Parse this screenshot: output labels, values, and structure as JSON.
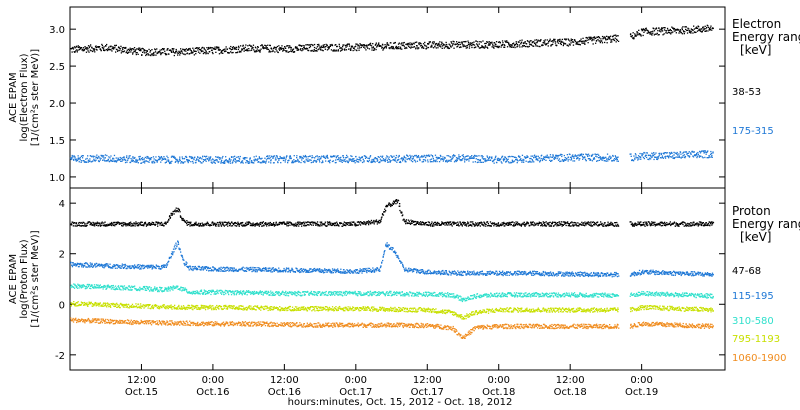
{
  "chart_data": [
    {
      "type": "scatter",
      "ylabel_lines": [
        "ACE EPAM",
        "log(Electron Flux)",
        "[1/(cm²s ster MeV)]"
      ],
      "ylim": [
        0.85,
        3.3
      ],
      "yticks": [
        1.0,
        1.5,
        2.0,
        2.5,
        3.0
      ],
      "ytick_labels": [
        "1.0",
        "1.5",
        "2.0",
        "2.5",
        "3.0"
      ],
      "legend_title_lines": [
        "Electron",
        "Energy ranges",
        "[keV]"
      ],
      "series": [
        {
          "name": "38-53",
          "color": "#000000",
          "x": [
            0,
            6,
            12,
            18,
            24,
            30,
            36,
            42,
            48,
            54,
            60,
            66,
            72,
            78,
            84,
            90,
            94,
            96,
            102,
            108
          ],
          "values": [
            2.73,
            2.76,
            2.7,
            2.7,
            2.72,
            2.75,
            2.74,
            2.76,
            2.76,
            2.78,
            2.79,
            2.8,
            2.8,
            2.82,
            2.83,
            2.87,
            2.9,
            2.97,
            2.99,
            3.02
          ]
        },
        {
          "name": "175-315",
          "color": "#1f78d6",
          "x": [
            0,
            6,
            12,
            18,
            24,
            30,
            36,
            42,
            48,
            54,
            60,
            66,
            72,
            78,
            84,
            90,
            94,
            96,
            102,
            108
          ],
          "values": [
            1.25,
            1.26,
            1.24,
            1.24,
            1.24,
            1.24,
            1.25,
            1.25,
            1.25,
            1.25,
            1.26,
            1.26,
            1.24,
            1.26,
            1.27,
            1.27,
            1.27,
            1.29,
            1.3,
            1.32
          ]
        }
      ]
    },
    {
      "type": "scatter",
      "ylabel_lines": [
        "ACE EPAM",
        "log(Proton Flux)",
        "[1/(cm²s ster MeV)]"
      ],
      "ylim": [
        -2.6,
        4.6
      ],
      "yticks": [
        -2,
        0,
        2,
        4
      ],
      "ytick_labels": [
        "-2",
        "0",
        "2",
        "4"
      ],
      "legend_title_lines": [
        "Proton",
        "Energy ranges",
        "[keV]"
      ],
      "series": [
        {
          "name": "47-68",
          "color": "#000000",
          "x": [
            0,
            6,
            12,
            16,
            17,
            18,
            19,
            20,
            24,
            30,
            36,
            42,
            48,
            52,
            53,
            54,
            55,
            56,
            60,
            66,
            72,
            78,
            84,
            90,
            94,
            96,
            102,
            108
          ],
          "values": [
            3.2,
            3.2,
            3.2,
            3.2,
            3.6,
            3.8,
            3.3,
            3.2,
            3.2,
            3.2,
            3.2,
            3.2,
            3.2,
            3.3,
            3.9,
            4.0,
            4.1,
            3.3,
            3.2,
            3.2,
            3.2,
            3.2,
            3.2,
            3.2,
            3.2,
            3.2,
            3.2,
            3.2
          ]
        },
        {
          "name": "115-195",
          "color": "#1f78d6",
          "x": [
            0,
            6,
            12,
            16,
            17,
            18,
            19,
            20,
            24,
            30,
            36,
            42,
            48,
            52,
            53,
            54,
            55,
            56,
            60,
            66,
            72,
            78,
            84,
            90,
            94,
            96,
            102,
            108
          ],
          "values": [
            1.6,
            1.55,
            1.5,
            1.5,
            2.0,
            2.5,
            1.7,
            1.45,
            1.42,
            1.4,
            1.38,
            1.35,
            1.33,
            1.4,
            2.4,
            2.2,
            1.9,
            1.4,
            1.3,
            1.25,
            1.25,
            1.25,
            1.22,
            1.2,
            1.2,
            1.3,
            1.25,
            1.2
          ]
        },
        {
          "name": "310-580",
          "color": "#30e0cc",
          "x": [
            0,
            6,
            12,
            16,
            18,
            20,
            24,
            30,
            36,
            42,
            48,
            54,
            60,
            64,
            66,
            68,
            72,
            78,
            84,
            90,
            94,
            96,
            102,
            108
          ],
          "values": [
            0.75,
            0.7,
            0.65,
            0.6,
            0.7,
            0.5,
            0.5,
            0.48,
            0.45,
            0.45,
            0.45,
            0.45,
            0.42,
            0.4,
            0.2,
            0.35,
            0.4,
            0.4,
            0.4,
            0.38,
            0.38,
            0.45,
            0.4,
            0.35
          ]
        },
        {
          "name": "795-1193",
          "color": "#c8e000",
          "x": [
            0,
            6,
            12,
            18,
            24,
            30,
            36,
            42,
            48,
            54,
            60,
            64,
            66,
            68,
            72,
            78,
            84,
            90,
            94,
            96,
            102,
            108
          ],
          "values": [
            0.05,
            0.0,
            -0.05,
            -0.1,
            -0.1,
            -0.12,
            -0.15,
            -0.15,
            -0.15,
            -0.18,
            -0.2,
            -0.3,
            -0.5,
            -0.3,
            -0.2,
            -0.2,
            -0.2,
            -0.2,
            -0.2,
            -0.1,
            -0.15,
            -0.2
          ]
        },
        {
          "name": "1060-1900",
          "color": "#f08c1e",
          "x": [
            0,
            6,
            12,
            18,
            24,
            30,
            36,
            42,
            48,
            54,
            60,
            64,
            66,
            68,
            72,
            78,
            84,
            90,
            94,
            96,
            102,
            108
          ],
          "values": [
            -0.6,
            -0.65,
            -0.7,
            -0.72,
            -0.75,
            -0.75,
            -0.78,
            -0.8,
            -0.8,
            -0.8,
            -0.82,
            -0.9,
            -1.3,
            -0.9,
            -0.85,
            -0.85,
            -0.85,
            -0.85,
            -0.85,
            -0.75,
            -0.8,
            -0.85
          ]
        }
      ]
    }
  ],
  "x_axis": {
    "range_hours": [
      0,
      110
    ],
    "tick_hours": [
      12,
      24,
      36,
      48,
      60,
      72,
      84,
      96
    ],
    "tick_time_labels": [
      "12:00",
      "0:00",
      "12:00",
      "0:00",
      "12:00",
      "0:00",
      "12:00",
      "0:00"
    ],
    "tick_date_labels": [
      "Oct.15",
      "Oct.16",
      "Oct.16",
      "Oct.17",
      "Oct.17",
      "Oct.18",
      "Oct.18",
      "Oct.19"
    ],
    "xlabel": "hours:minutes, Oct. 15, 2012 - Oct. 18, 2012"
  }
}
